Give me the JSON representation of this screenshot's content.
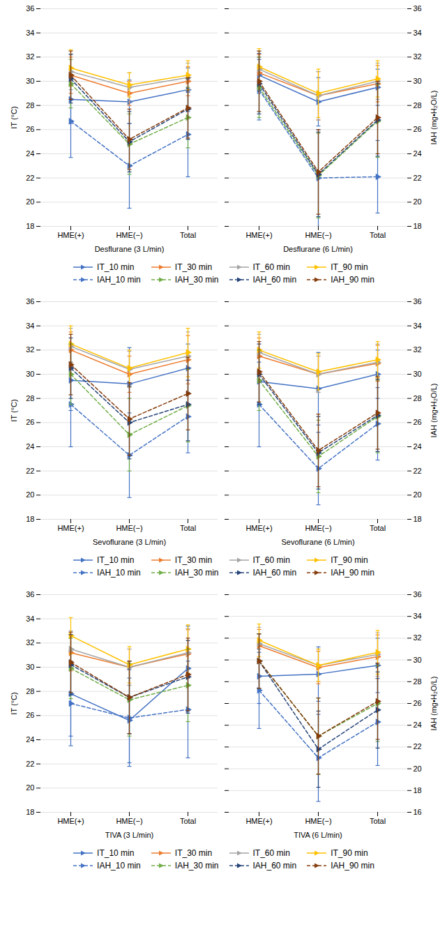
{
  "chart_data": [
    {
      "type": "line",
      "xlabel": "Desflurane (3 L/min)",
      "ylabel": "IT (°C)",
      "categories": [
        "HME(+)",
        "HME(−)",
        "Total"
      ],
      "ylim": [
        18,
        36
      ],
      "yticks": [
        18,
        20,
        22,
        24,
        26,
        28,
        30,
        32,
        34,
        36
      ],
      "grid": true,
      "legend": "bottom",
      "series": [
        {
          "name": "IT_10 min",
          "color": "#4472C4",
          "line_style": "solid",
          "marker": "triangle-right",
          "values": [
            28.5,
            28.3,
            29.3
          ],
          "errors": [
            2.0,
            1.8,
            1.8
          ]
        },
        {
          "name": "IT_30 min",
          "color": "#ED7D31",
          "line_style": "solid",
          "marker": "triangle-right",
          "values": [
            30.5,
            29.0,
            30.0
          ],
          "errors": [
            1.5,
            1.0,
            1.2
          ]
        },
        {
          "name": "IT_60 min",
          "color": "#A5A5A5",
          "line_style": "solid",
          "marker": "triangle-right",
          "values": [
            30.8,
            29.5,
            30.3
          ],
          "errors": [
            1.5,
            1.2,
            1.2
          ]
        },
        {
          "name": "IT_90 min",
          "color": "#FFC000",
          "line_style": "solid",
          "marker": "triangle-right",
          "values": [
            31.1,
            29.7,
            30.5
          ],
          "errors": [
            1.5,
            1.0,
            1.2
          ]
        },
        {
          "name": "IAH_10 min",
          "color": "#4472C4",
          "line_style": "dashed",
          "marker": "triangle-right",
          "values": [
            26.7,
            23.0,
            25.6
          ],
          "errors": [
            3.0,
            3.5,
            3.5
          ]
        },
        {
          "name": "IAH_30 min",
          "color": "#70AD47",
          "line_style": "dashed",
          "marker": "triangle-right",
          "values": [
            29.8,
            24.8,
            27.0
          ],
          "errors": [
            2.0,
            2.5,
            2.5
          ]
        },
        {
          "name": "IAH_60 min",
          "color": "#264478",
          "line_style": "dashed",
          "marker": "triangle-right",
          "values": [
            30.2,
            25.0,
            27.7
          ],
          "errors": [
            2.0,
            2.5,
            2.5
          ]
        },
        {
          "name": "IAH_90 min",
          "color": "#843C0C",
          "line_style": "dashed",
          "marker": "triangle-right",
          "values": [
            30.5,
            25.2,
            27.8
          ],
          "errors": [
            2.0,
            2.5,
            2.5
          ]
        }
      ]
    },
    {
      "type": "line",
      "xlabel": "Desflurane (6 L/min)",
      "y2label": "IAH (mg•H₂O/L)",
      "categories": [
        "HME(+)",
        "HME(−)",
        "Total"
      ],
      "ylim": [
        18,
        36
      ],
      "yticks": [
        18,
        20,
        22,
        24,
        26,
        28,
        30,
        32,
        34,
        36
      ],
      "y2lim": [
        18,
        36
      ],
      "y2ticks": [
        18,
        20,
        22,
        24,
        26,
        28,
        30,
        32,
        34,
        36
      ],
      "grid": true,
      "legend": "bottom",
      "series": [
        {
          "name": "IT_10 min",
          "color": "#4472C4",
          "line_style": "solid",
          "marker": "triangle-right",
          "values": [
            30.5,
            28.3,
            29.5
          ],
          "errors": [
            1.5,
            2.0,
            1.5
          ]
        },
        {
          "name": "IT_30 min",
          "color": "#ED7D31",
          "line_style": "solid",
          "marker": "triangle-right",
          "values": [
            30.7,
            28.8,
            29.8
          ],
          "errors": [
            1.5,
            2.0,
            1.5
          ]
        },
        {
          "name": "IT_60 min",
          "color": "#A5A5A5",
          "line_style": "solid",
          "marker": "triangle-right",
          "values": [
            31.0,
            28.8,
            30.0
          ],
          "errors": [
            1.5,
            2.0,
            1.5
          ]
        },
        {
          "name": "IT_90 min",
          "color": "#FFC000",
          "line_style": "solid",
          "marker": "triangle-right",
          "values": [
            31.2,
            29.0,
            30.2
          ],
          "errors": [
            1.5,
            2.0,
            1.5
          ]
        },
        {
          "name": "IAH_10 min",
          "color": "#4472C4",
          "line_style": "dashed",
          "marker": "triangle-right",
          "values": [
            29.3,
            22.0,
            22.1
          ],
          "errors": [
            2.5,
            4.0,
            3.0
          ]
        },
        {
          "name": "IAH_30 min",
          "color": "#70AD47",
          "line_style": "dashed",
          "marker": "triangle-right",
          "values": [
            29.5,
            22.2,
            26.7
          ],
          "errors": [
            2.5,
            3.5,
            3.0
          ]
        },
        {
          "name": "IAH_60 min",
          "color": "#264478",
          "line_style": "dashed",
          "marker": "triangle-right",
          "values": [
            29.8,
            22.3,
            26.8
          ],
          "errors": [
            2.5,
            3.5,
            3.0
          ]
        },
        {
          "name": "IAH_90 min",
          "color": "#843C0C",
          "line_style": "dashed",
          "marker": "triangle-right",
          "values": [
            30.0,
            22.5,
            27.0
          ],
          "errors": [
            2.5,
            3.5,
            3.0
          ]
        }
      ]
    },
    {
      "type": "line",
      "xlabel": "Sevoflurane (3 L/min)",
      "ylabel": "IT (°C)",
      "categories": [
        "HME(+)",
        "HME(−)",
        "Total"
      ],
      "ylim": [
        18,
        36
      ],
      "yticks": [
        18,
        20,
        22,
        24,
        26,
        28,
        30,
        32,
        34,
        36
      ],
      "grid": true,
      "legend": "bottom",
      "series": [
        {
          "name": "IT_10 min",
          "color": "#4472C4",
          "line_style": "solid",
          "marker": "triangle-right",
          "values": [
            29.5,
            29.2,
            30.5
          ],
          "errors": [
            2.5,
            3.0,
            2.0
          ]
        },
        {
          "name": "IT_30 min",
          "color": "#ED7D31",
          "line_style": "solid",
          "marker": "triangle-right",
          "values": [
            32.0,
            30.0,
            31.2
          ],
          "errors": [
            1.5,
            1.5,
            2.0
          ]
        },
        {
          "name": "IT_60 min",
          "color": "#A5A5A5",
          "line_style": "solid",
          "marker": "triangle-right",
          "values": [
            32.3,
            30.4,
            31.5
          ],
          "errors": [
            1.5,
            1.5,
            2.0
          ]
        },
        {
          "name": "IT_90 min",
          "color": "#FFC000",
          "line_style": "solid",
          "marker": "triangle-right",
          "values": [
            32.5,
            30.5,
            31.8
          ],
          "errors": [
            1.5,
            1.5,
            2.0
          ]
        },
        {
          "name": "IAH_10 min",
          "color": "#4472C4",
          "line_style": "dashed",
          "marker": "triangle-right",
          "values": [
            27.5,
            23.3,
            26.5
          ],
          "errors": [
            3.5,
            3.5,
            3.0
          ]
        },
        {
          "name": "IAH_30 min",
          "color": "#70AD47",
          "line_style": "dashed",
          "marker": "triangle-right",
          "values": [
            30.0,
            25.0,
            27.4
          ],
          "errors": [
            2.5,
            3.0,
            3.0
          ]
        },
        {
          "name": "IAH_60 min",
          "color": "#264478",
          "line_style": "dashed",
          "marker": "triangle-right",
          "values": [
            30.5,
            26.0,
            27.5
          ],
          "errors": [
            2.5,
            3.0,
            3.0
          ]
        },
        {
          "name": "IAH_90 min",
          "color": "#843C0C",
          "line_style": "dashed",
          "marker": "triangle-right",
          "values": [
            30.8,
            26.3,
            28.4
          ],
          "errors": [
            2.5,
            3.0,
            3.0
          ]
        }
      ]
    },
    {
      "type": "line",
      "xlabel": "Sevoflurane (6 L/min)",
      "y2label": "IAH (mg•H₂O/L)",
      "categories": [
        "HME(+)",
        "HME(−)",
        "Total"
      ],
      "ylim": [
        18,
        36
      ],
      "yticks": [
        18,
        20,
        22,
        24,
        26,
        28,
        30,
        32,
        34,
        36
      ],
      "y2lim": [
        18,
        36
      ],
      "y2ticks": [
        18,
        20,
        22,
        24,
        26,
        28,
        30,
        32,
        34,
        36
      ],
      "grid": true,
      "legend": "bottom",
      "series": [
        {
          "name": "IT_10 min",
          "color": "#4472C4",
          "line_style": "solid",
          "marker": "triangle-right",
          "values": [
            29.4,
            28.8,
            30.0
          ],
          "errors": [
            2.0,
            3.0,
            2.0
          ]
        },
        {
          "name": "IT_30 min",
          "color": "#ED7D31",
          "line_style": "solid",
          "marker": "triangle-right",
          "values": [
            31.5,
            30.0,
            30.9
          ],
          "errors": [
            1.5,
            1.5,
            1.5
          ]
        },
        {
          "name": "IT_60 min",
          "color": "#A5A5A5",
          "line_style": "solid",
          "marker": "triangle-right",
          "values": [
            31.8,
            30.0,
            31.0
          ],
          "errors": [
            1.5,
            1.5,
            1.5
          ]
        },
        {
          "name": "IT_90 min",
          "color": "#FFC000",
          "line_style": "solid",
          "marker": "triangle-right",
          "values": [
            32.0,
            30.2,
            31.2
          ],
          "errors": [
            1.5,
            1.5,
            1.5
          ]
        },
        {
          "name": "IAH_10 min",
          "color": "#4472C4",
          "line_style": "dashed",
          "marker": "triangle-right",
          "values": [
            27.5,
            22.2,
            25.9
          ],
          "errors": [
            3.5,
            3.0,
            3.0
          ]
        },
        {
          "name": "IAH_30 min",
          "color": "#70AD47",
          "line_style": "dashed",
          "marker": "triangle-right",
          "values": [
            29.5,
            23.2,
            26.5
          ],
          "errors": [
            2.5,
            3.0,
            3.0
          ]
        },
        {
          "name": "IAH_60 min",
          "color": "#264478",
          "line_style": "dashed",
          "marker": "triangle-right",
          "values": [
            30.0,
            23.5,
            26.6
          ],
          "errors": [
            2.5,
            3.0,
            3.0
          ]
        },
        {
          "name": "IAH_90 min",
          "color": "#843C0C",
          "line_style": "dashed",
          "marker": "triangle-right",
          "values": [
            30.2,
            23.7,
            26.8
          ],
          "errors": [
            2.5,
            3.0,
            3.0
          ]
        }
      ]
    },
    {
      "type": "line",
      "xlabel": "TIVA (3 L/min)",
      "ylabel": "IT (°C)",
      "categories": [
        "HME(+)",
        "HME(−)",
        "Total"
      ],
      "ylim": [
        18,
        36
      ],
      "yticks": [
        18,
        20,
        22,
        24,
        26,
        28,
        30,
        32,
        34,
        36
      ],
      "grid": true,
      "legend": "bottom",
      "series": [
        {
          "name": "IT_10 min",
          "color": "#4472C4",
          "line_style": "solid",
          "marker": "triangle-right",
          "values": [
            27.8,
            25.6,
            29.9
          ],
          "errors": [
            3.5,
            3.5,
            3.5
          ]
        },
        {
          "name": "IT_30 min",
          "color": "#ED7D31",
          "line_style": "solid",
          "marker": "triangle-right",
          "values": [
            31.2,
            30.0,
            31.1
          ],
          "errors": [
            1.5,
            1.5,
            2.0
          ]
        },
        {
          "name": "IT_60 min",
          "color": "#A5A5A5",
          "line_style": "solid",
          "marker": "triangle-right",
          "values": [
            31.5,
            30.0,
            31.2
          ],
          "errors": [
            1.5,
            1.5,
            2.0
          ]
        },
        {
          "name": "IT_90 min",
          "color": "#FFC000",
          "line_style": "solid",
          "marker": "triangle-right",
          "values": [
            32.6,
            30.2,
            31.5
          ],
          "errors": [
            1.5,
            1.5,
            2.0
          ]
        },
        {
          "name": "IAH_10 min",
          "color": "#4472C4",
          "line_style": "dashed",
          "marker": "triangle-right",
          "values": [
            27.0,
            25.8,
            26.5
          ],
          "errors": [
            3.5,
            4.0,
            4.0
          ]
        },
        {
          "name": "IAH_30 min",
          "color": "#70AD47",
          "line_style": "dashed",
          "marker": "triangle-right",
          "values": [
            29.9,
            27.3,
            28.5
          ],
          "errors": [
            2.5,
            3.0,
            3.0
          ]
        },
        {
          "name": "IAH_60 min",
          "color": "#264478",
          "line_style": "dashed",
          "marker": "triangle-right",
          "values": [
            30.2,
            27.5,
            29.2
          ],
          "errors": [
            2.5,
            3.0,
            3.0
          ]
        },
        {
          "name": "IAH_90 min",
          "color": "#843C0C",
          "line_style": "dashed",
          "marker": "triangle-right",
          "values": [
            30.4,
            27.5,
            29.4
          ],
          "errors": [
            2.5,
            3.0,
            3.0
          ]
        }
      ]
    },
    {
      "type": "line",
      "xlabel": "TIVA (6 L/min)",
      "y2label": "IAH (mg•H₂O/L)",
      "categories": [
        "HME(+)",
        "HME(−)",
        "Total"
      ],
      "ylim": [
        16,
        36
      ],
      "yticks": [
        16,
        18,
        20,
        22,
        24,
        26,
        28,
        30,
        32,
        34,
        36
      ],
      "y2lim": [
        16,
        36
      ],
      "y2ticks": [
        16,
        18,
        20,
        22,
        24,
        26,
        28,
        30,
        32,
        34,
        36
      ],
      "grid": true,
      "legend": "bottom",
      "series": [
        {
          "name": "IT_10 min",
          "color": "#4472C4",
          "line_style": "solid",
          "marker": "triangle-right",
          "values": [
            28.5,
            28.7,
            29.5
          ],
          "errors": [
            2.5,
            2.5,
            2.5
          ]
        },
        {
          "name": "IT_30 min",
          "color": "#ED7D31",
          "line_style": "solid",
          "marker": "triangle-right",
          "values": [
            31.3,
            29.3,
            30.3
          ],
          "errors": [
            1.5,
            1.5,
            2.0
          ]
        },
        {
          "name": "IT_60 min",
          "color": "#A5A5A5",
          "line_style": "solid",
          "marker": "triangle-right",
          "values": [
            31.5,
            29.5,
            30.5
          ],
          "errors": [
            1.5,
            1.5,
            2.0
          ]
        },
        {
          "name": "IT_90 min",
          "color": "#FFC000",
          "line_style": "solid",
          "marker": "triangle-right",
          "values": [
            31.8,
            29.5,
            30.7
          ],
          "errors": [
            1.5,
            1.5,
            2.0
          ]
        },
        {
          "name": "IAH_10 min",
          "color": "#4472C4",
          "line_style": "dashed",
          "marker": "triangle-right",
          "values": [
            27.2,
            21.0,
            24.3
          ],
          "errors": [
            3.5,
            4.0,
            4.0
          ]
        },
        {
          "name": "IAH_30 min",
          "color": "#70AD47",
          "line_style": "dashed",
          "marker": "triangle-right",
          "values": [
            29.9,
            23.0,
            26.0
          ],
          "errors": [
            2.5,
            3.5,
            3.5
          ]
        },
        {
          "name": "IAH_60 min",
          "color": "#264478",
          "line_style": "dashed",
          "marker": "triangle-right",
          "values": [
            29.9,
            21.8,
            25.4
          ],
          "errors": [
            2.5,
            3.5,
            3.5
          ]
        },
        {
          "name": "IAH_90 min",
          "color": "#843C0C",
          "line_style": "dashed",
          "marker": "triangle-right",
          "values": [
            29.9,
            23.0,
            26.2
          ],
          "errors": [
            2.5,
            3.5,
            3.5
          ]
        }
      ]
    }
  ]
}
